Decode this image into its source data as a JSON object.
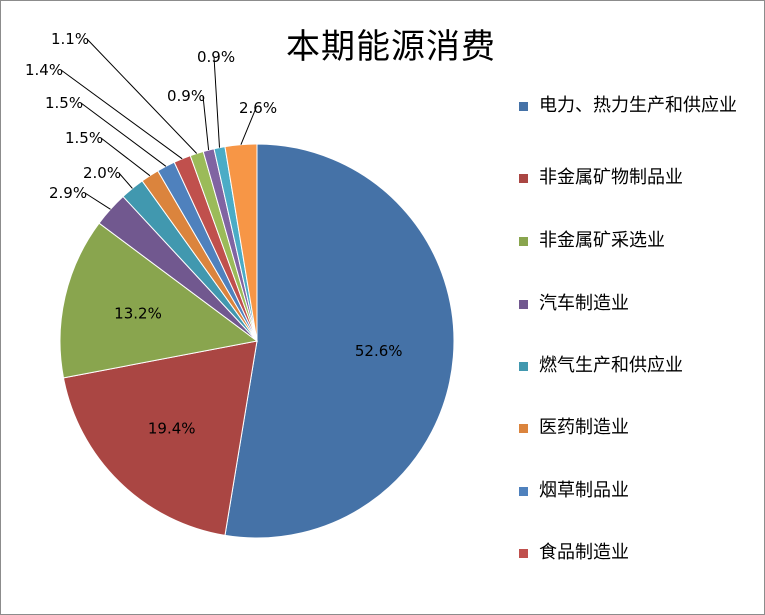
{
  "chart_data": {
    "type": "pie",
    "title": "本期能源消费",
    "start_angle_deg": 90,
    "direction": "clockwise",
    "slices": [
      {
        "label": "电力、热力生产和供应业",
        "value": 52.6,
        "display": "52.6%",
        "color": "#4572a7",
        "label_mode": "inside"
      },
      {
        "label": "非金属矿物制品业",
        "value": 19.4,
        "display": "19.4%",
        "color": "#aa4643",
        "label_mode": "inside"
      },
      {
        "label": "非金属矿采选业",
        "value": 13.2,
        "display": "13.2%",
        "color": "#89a54e",
        "label_mode": "inside"
      },
      {
        "label": "汽车制造业",
        "value": 2.9,
        "display": "2.9%",
        "color": "#71588f",
        "label_mode": "leader"
      },
      {
        "label": "燃气生产和供应业",
        "value": 2.0,
        "display": "2.0%",
        "color": "#4198af",
        "label_mode": "leader"
      },
      {
        "label": "医药制造业",
        "value": 1.5,
        "display": "1.5%",
        "color": "#db843d",
        "label_mode": "leader"
      },
      {
        "label": "烟草制品业",
        "value": 1.5,
        "display": "1.5%",
        "color": "#4f81bd",
        "label_mode": "leader"
      },
      {
        "label": "食品制造业",
        "value": 1.4,
        "display": "1.4%",
        "color": "#c0504d",
        "label_mode": "leader"
      },
      {
        "label": "",
        "value": 1.1,
        "display": "1.1%",
        "color": "#9bbb59",
        "label_mode": "leader"
      },
      {
        "label": "",
        "value": 0.9,
        "display": "0.9%",
        "color": "#8064a2",
        "label_mode": "leader"
      },
      {
        "label": "",
        "value": 0.9,
        "display": "0.9%",
        "color": "#4bacc6",
        "label_mode": "leader"
      },
      {
        "label": "",
        "value": 2.6,
        "display": "2.6%",
        "color": "#f79646",
        "label_mode": "leader"
      }
    ],
    "legend": {
      "position": "right",
      "items": [
        {
          "label": "电力、热力生产和供应业",
          "color": "#4572a7"
        },
        {
          "label": "非金属矿物制品业",
          "color": "#aa4643"
        },
        {
          "label": "非金属矿采选业",
          "color": "#89a54e"
        },
        {
          "label": "汽车制造业",
          "color": "#71588f"
        },
        {
          "label": "燃气生产和供应业",
          "color": "#4198af"
        },
        {
          "label": "医药制造业",
          "color": "#db843d"
        },
        {
          "label": "烟草制品业",
          "color": "#4f81bd"
        },
        {
          "label": "食品制造业",
          "color": "#c0504d"
        }
      ]
    }
  }
}
